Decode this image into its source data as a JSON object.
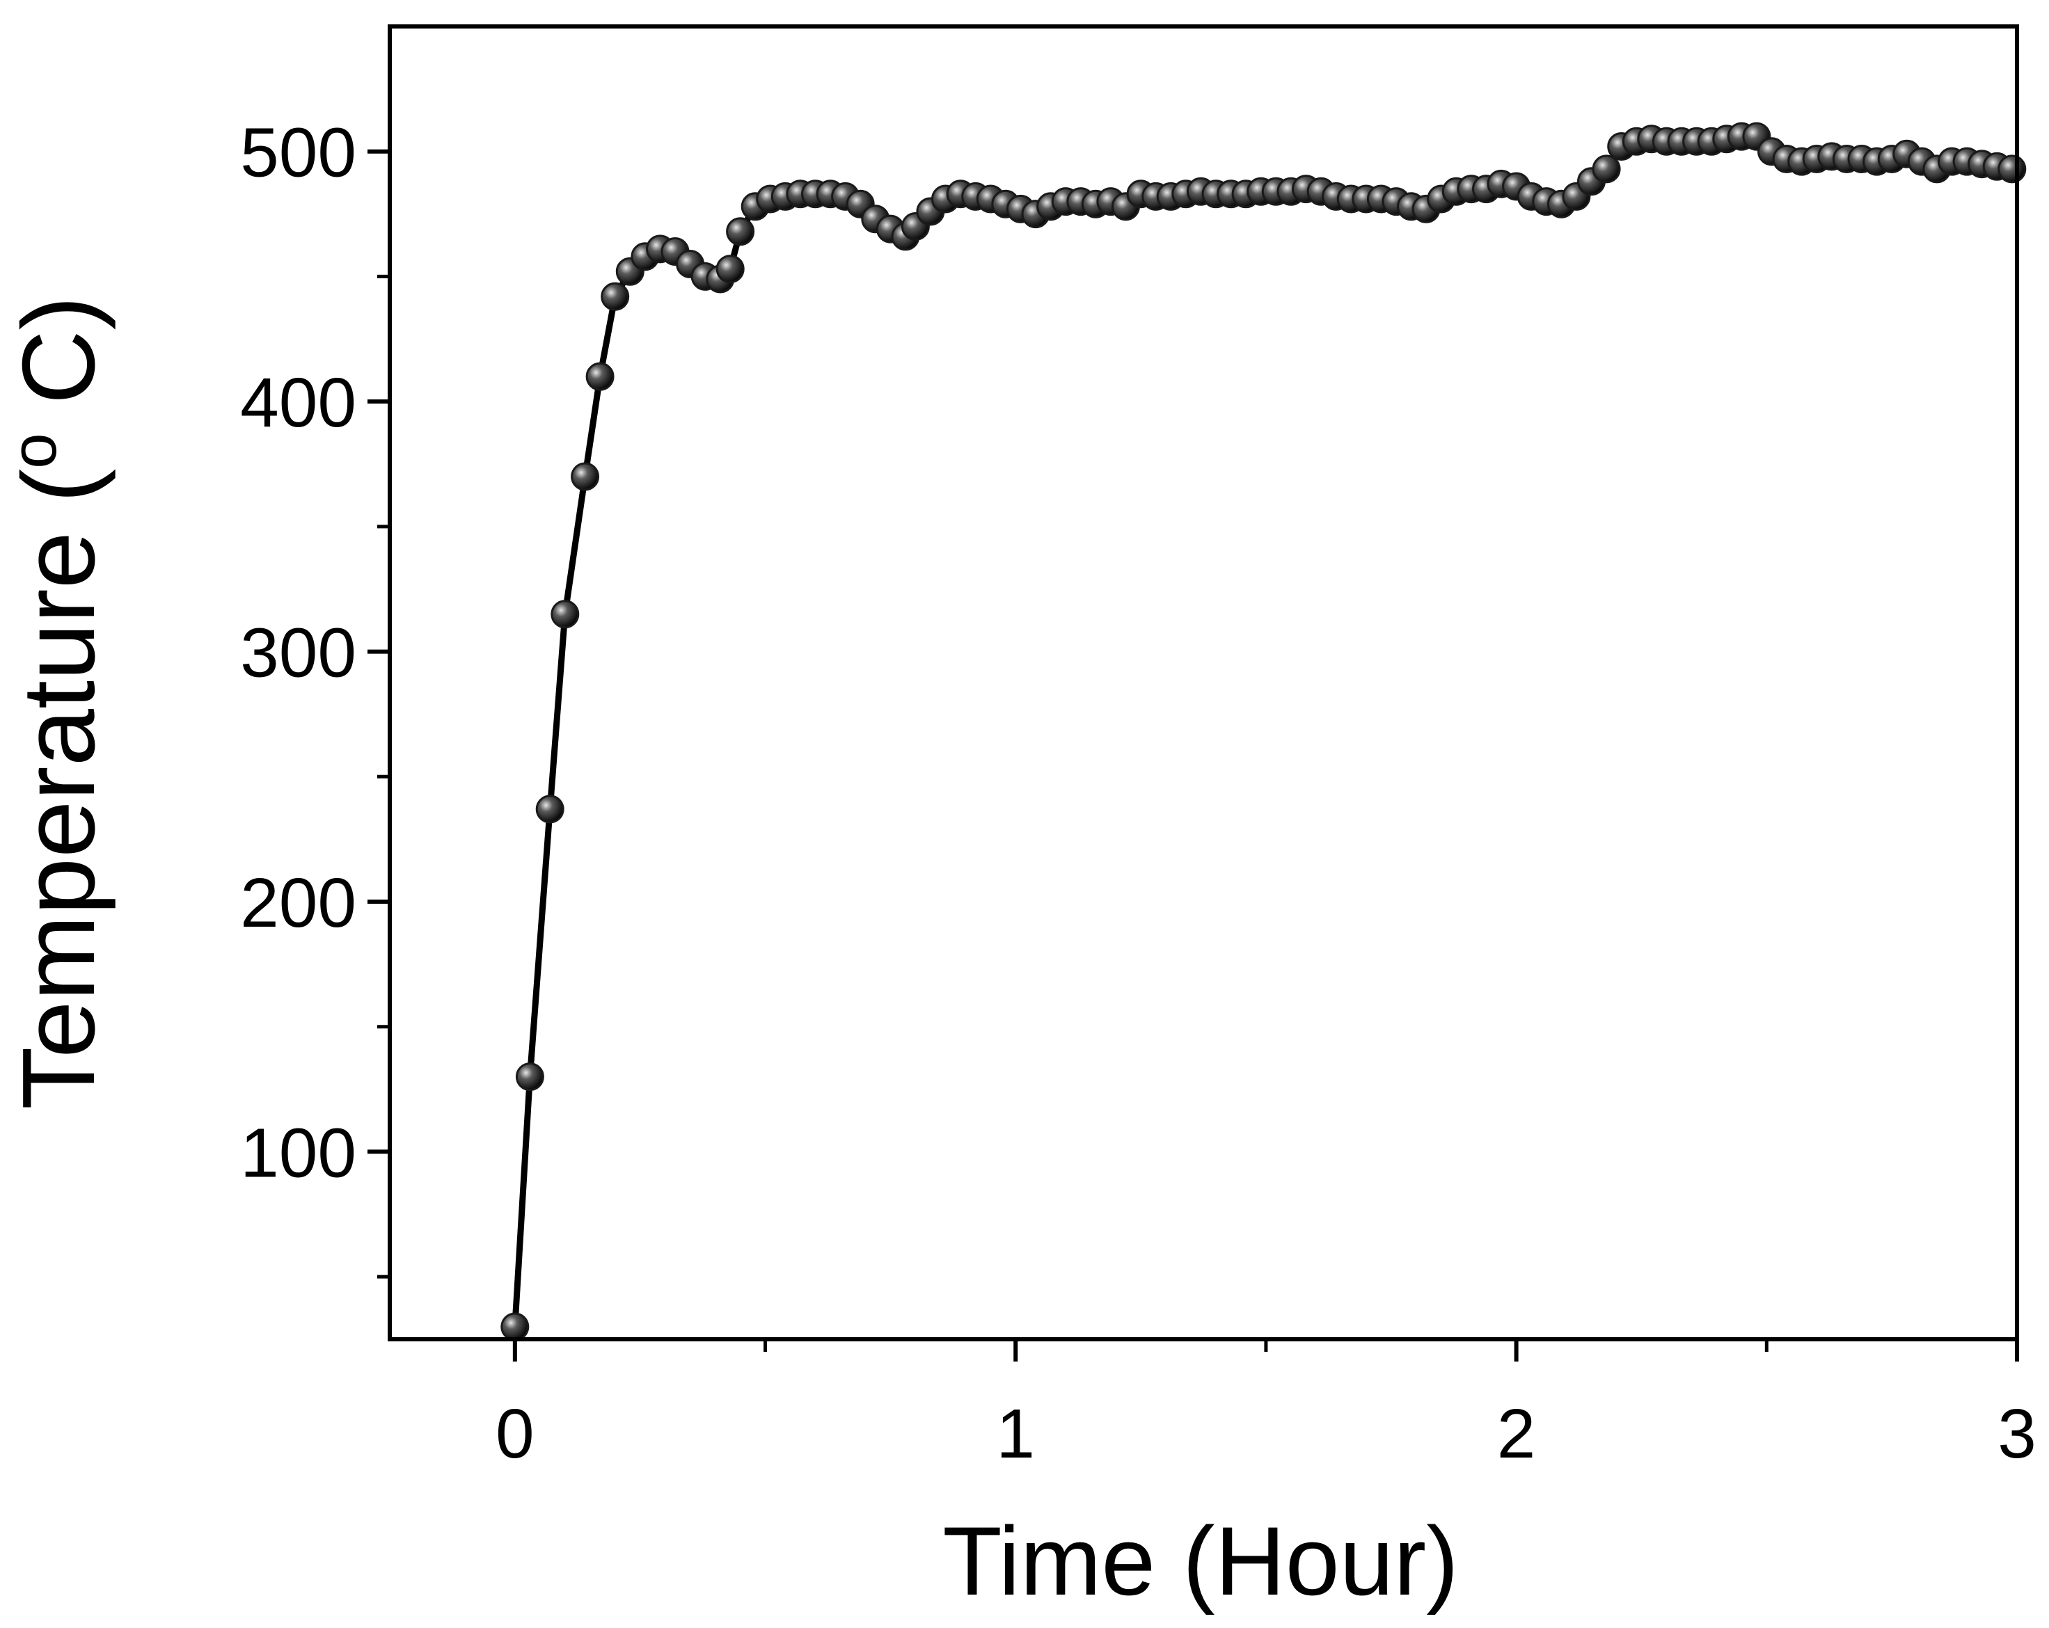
{
  "chart_data": {
    "type": "line",
    "title": "",
    "xlabel": "Time (Hour)",
    "ylabel_main": "Temperature (",
    "ylabel_sup": "o",
    "ylabel_unit": " C)",
    "xlim": [
      -0.25,
      3.0
    ],
    "ylim": [
      25,
      550
    ],
    "xticks": [
      0,
      1,
      2,
      3
    ],
    "xtick_labels": [
      "0",
      "1",
      "2",
      "3"
    ],
    "xminor": [
      0.5,
      1.5,
      2.5
    ],
    "yticks": [
      100,
      200,
      300,
      400,
      500
    ],
    "ytick_labels": [
      "100",
      "200",
      "300",
      "400",
      "500"
    ],
    "yminor": [
      50,
      150,
      250,
      350,
      450
    ],
    "grid": false,
    "legend": false,
    "line_color": "#000000",
    "marker_color": "#1a1a1a",
    "series": [
      {
        "marker": "circle",
        "x": [
          0.0,
          0.03,
          0.07,
          0.1,
          0.14,
          0.17,
          0.2,
          0.23,
          0.26,
          0.29,
          0.32,
          0.35,
          0.38,
          0.41,
          0.43,
          0.45,
          0.48,
          0.51,
          0.54,
          0.57,
          0.6,
          0.63,
          0.66,
          0.69,
          0.72,
          0.75,
          0.78,
          0.8,
          0.83,
          0.86,
          0.89,
          0.92,
          0.95,
          0.98,
          1.01,
          1.04,
          1.07,
          1.1,
          1.13,
          1.16,
          1.19,
          1.22,
          1.25,
          1.28,
          1.31,
          1.34,
          1.37,
          1.4,
          1.43,
          1.46,
          1.49,
          1.52,
          1.55,
          1.58,
          1.61,
          1.64,
          1.67,
          1.7,
          1.73,
          1.76,
          1.79,
          1.82,
          1.85,
          1.88,
          1.91,
          1.94,
          1.97,
          2.0,
          2.03,
          2.06,
          2.09,
          2.12,
          2.15,
          2.18,
          2.21,
          2.24,
          2.27,
          2.3,
          2.33,
          2.36,
          2.39,
          2.42,
          2.45,
          2.48,
          2.51,
          2.54,
          2.57,
          2.6,
          2.63,
          2.66,
          2.69,
          2.72,
          2.75,
          2.78,
          2.81,
          2.84,
          2.87,
          2.9,
          2.93,
          2.96,
          2.99
        ],
        "y": [
          30,
          130,
          237,
          315,
          370,
          410,
          442,
          452,
          458,
          461,
          460,
          455,
          450,
          449,
          453,
          468,
          478,
          481,
          482,
          483,
          483,
          483,
          482,
          479,
          473,
          469,
          466,
          470,
          476,
          481,
          483,
          482,
          481,
          479,
          477,
          475,
          478,
          480,
          480,
          479,
          480,
          478,
          483,
          482,
          482,
          483,
          484,
          483,
          483,
          483,
          484,
          484,
          484,
          485,
          484,
          482,
          481,
          481,
          481,
          480,
          478,
          477,
          481,
          484,
          485,
          485,
          487,
          486,
          482,
          480,
          479,
          482,
          488,
          493,
          502,
          504,
          505,
          504,
          504,
          504,
          504,
          505,
          506,
          506,
          500,
          497,
          496,
          497,
          498,
          497,
          497,
          496,
          497,
          499,
          496,
          493,
          496,
          496,
          495,
          494,
          493
        ]
      }
    ]
  }
}
